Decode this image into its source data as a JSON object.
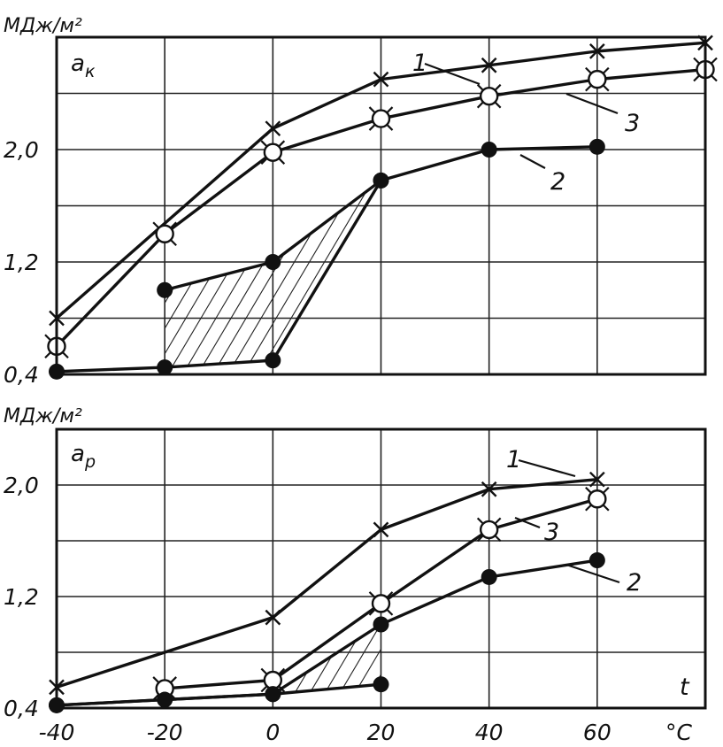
{
  "chart_data": [
    {
      "type": "line",
      "title": "",
      "symbol": "a",
      "symbol_sub": "к",
      "unit_label": "МДж/м²",
      "xlabel": "",
      "ylabel": "МДж/м²",
      "xlim": [
        -40,
        80
      ],
      "ylim": [
        0.4,
        2.8
      ],
      "y_ticks": [
        "0,4",
        "1,2",
        "2,0"
      ],
      "y_tick_values": [
        0.4,
        1.2,
        2.0
      ],
      "grid": true,
      "series": [
        {
          "name": "1",
          "marker": "cross",
          "x": [
            -40,
            0,
            20,
            40,
            60,
            80
          ],
          "y": [
            0.8,
            2.15,
            2.5,
            2.6,
            2.7,
            2.76
          ]
        },
        {
          "name": "3",
          "marker": "open-circle-cross",
          "x": [
            -40,
            -20,
            0,
            20,
            40,
            60,
            80
          ],
          "y": [
            0.6,
            1.4,
            1.98,
            2.22,
            2.38,
            2.5,
            2.57
          ]
        },
        {
          "name": "2",
          "marker": "filled-circle",
          "x": [
            -40,
            -20,
            0,
            20,
            40,
            60
          ],
          "y": [
            0.42,
            0.45,
            0.5,
            1.78,
            2.0,
            2.02
          ]
        },
        {
          "name": "2",
          "marker": "filled-circle",
          "x": [
            -20,
            0,
            20
          ],
          "y": [
            1.0,
            1.2,
            1.78
          ]
        }
      ],
      "shaded_band": {
        "x_upper": [
          -20,
          0,
          20
        ],
        "y_upper": [
          1.0,
          1.2,
          1.78
        ],
        "x_lower": [
          -20,
          0,
          20
        ],
        "y_lower": [
          0.45,
          0.5,
          1.78
        ]
      },
      "labels": [
        "1",
        "3",
        "2"
      ]
    },
    {
      "type": "line",
      "title": "",
      "symbol": "a",
      "symbol_sub": "р",
      "unit_label": "МДж/м²",
      "xlabel": "t",
      "x_unit": "°C",
      "ylabel": "МДж/м²",
      "xlim": [
        -40,
        80
      ],
      "ylim": [
        0.4,
        2.4
      ],
      "x_ticks": [
        "-40",
        "-20",
        "0",
        "20",
        "40",
        "60"
      ],
      "x_tick_values": [
        -40,
        -20,
        0,
        20,
        40,
        60
      ],
      "y_ticks": [
        "0,4",
        "1,2",
        "2,0"
      ],
      "y_tick_values": [
        0.4,
        1.2,
        2.0
      ],
      "grid": true,
      "series": [
        {
          "name": "1",
          "marker": "cross",
          "x": [
            -40,
            0,
            20,
            40,
            60
          ],
          "y": [
            0.55,
            1.05,
            1.68,
            1.97,
            2.04
          ]
        },
        {
          "name": "3",
          "marker": "open-circle-cross",
          "x": [
            -20,
            0,
            20,
            40,
            60
          ],
          "y": [
            0.54,
            0.6,
            1.15,
            1.68,
            1.9
          ]
        },
        {
          "name": "2",
          "marker": "filled-circle",
          "x": [
            -40,
            -20,
            0,
            20,
            40,
            60
          ],
          "y": [
            0.42,
            0.46,
            0.5,
            1.0,
            1.34,
            1.46
          ]
        },
        {
          "name": "2",
          "marker": "filled-circle",
          "x": [
            -40,
            0,
            20
          ],
          "y": [
            0.42,
            0.5,
            0.57
          ]
        }
      ],
      "shaded_band": {
        "x_upper": [
          0,
          20
        ],
        "y_upper": [
          0.5,
          1.0
        ],
        "x_lower": [
          0,
          20
        ],
        "y_lower": [
          0.5,
          0.57
        ]
      },
      "labels": [
        "1",
        "3",
        "2"
      ]
    }
  ]
}
